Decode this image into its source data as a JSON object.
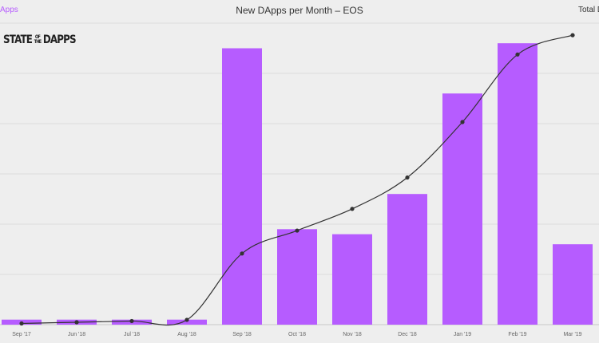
{
  "chart_data": {
    "type": "bar",
    "title": "New DApps per Month – EOS",
    "categories": [
      "Sep '17",
      "Jun '18",
      "Jul '18",
      "Aug '18",
      "Sep '18",
      "Oct '18",
      "Nov '18",
      "Dec '18",
      "Jan '19",
      "Feb '19",
      "Mar '19"
    ],
    "series": [
      {
        "name": "New DApps",
        "type": "bar",
        "axis": "left",
        "color": "#b65cff",
        "values": [
          2,
          2,
          2,
          2,
          110,
          38,
          36,
          52,
          92,
          112,
          32
        ]
      },
      {
        "name": "Total DApps",
        "type": "line",
        "axis": "right",
        "color": "#333333",
        "values": [
          2,
          4,
          6,
          8,
          118,
          156,
          192,
          244,
          336,
          448,
          480
        ]
      }
    ],
    "ylim": [
      0,
      120
    ],
    "y2lim": [
      0,
      500
    ],
    "grid": true,
    "legend": "top"
  },
  "logo_text": "STATE OF THE DAPPS"
}
